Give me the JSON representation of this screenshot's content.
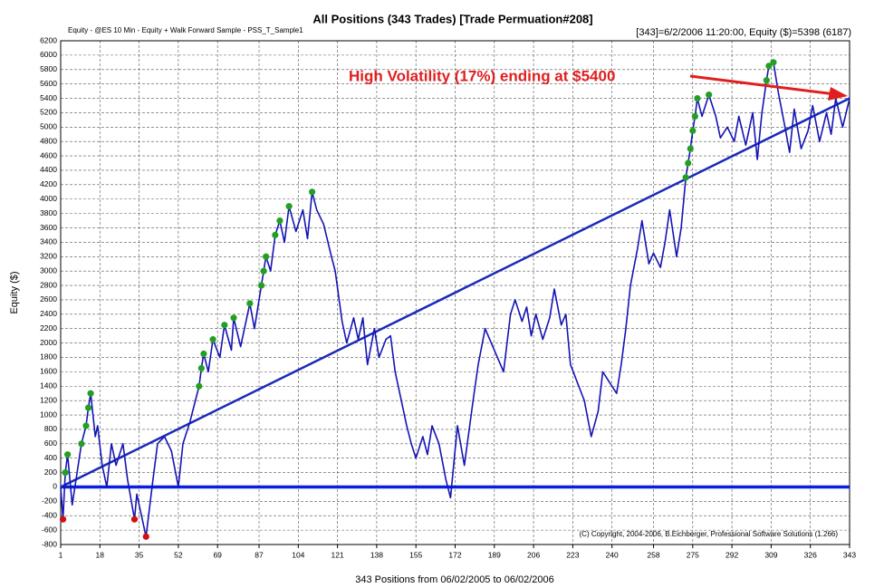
{
  "chart_data": {
    "type": "line",
    "title": "All Positions (343 Trades) [Trade Permuation#208]",
    "subtitle": "Equity - @ES 10 Min - Equity + Walk Forward Sample - PSS_T_Sample1",
    "info": "[343]=6/2/2006 11:20:00,  Equity ($)=5398 (6187)",
    "y_label": "Equity ($)",
    "x_label": "343 Positions from 06/02/2005 to 06/02/2006",
    "annotation": "High Volatility (17%) ending at $5400",
    "copyright": "(C) Copyright, 2004-2006, B.Eichberger, Professional Software Solutions (1.266)",
    "xlim": [
      1,
      343
    ],
    "ylim": [
      -800,
      6200
    ],
    "xticks": [
      1,
      18,
      35,
      52,
      69,
      87,
      104,
      121,
      138,
      155,
      172,
      189,
      206,
      223,
      240,
      258,
      275,
      292,
      309,
      326,
      343
    ],
    "yticks": [
      -800,
      -600,
      -400,
      -200,
      0,
      200,
      400,
      600,
      800,
      1000,
      1200,
      1400,
      1600,
      1800,
      2000,
      2200,
      2400,
      2600,
      2800,
      3000,
      3200,
      3400,
      3600,
      3800,
      4000,
      4200,
      4400,
      4600,
      4800,
      5000,
      5200,
      5400,
      5600,
      5800,
      6000,
      6200
    ],
    "grid": true,
    "zero_line": 0,
    "series": [
      {
        "color": "#1414b4",
        "x": [
          1,
          2,
          3,
          4,
          6,
          10,
          12,
          13,
          14,
          16,
          17,
          19,
          21,
          23,
          25,
          28,
          30,
          33,
          34,
          38,
          41,
          43,
          46,
          49,
          52,
          54,
          57,
          61,
          62,
          63,
          65,
          67,
          70,
          72,
          75,
          76,
          79,
          83,
          85,
          88,
          89,
          90,
          92,
          94,
          96,
          98,
          100,
          103,
          106,
          108,
          110,
          112,
          115,
          118,
          120,
          123,
          125,
          128,
          130,
          132,
          134,
          137,
          139,
          142,
          144,
          146,
          148,
          151,
          153,
          155,
          158,
          160,
          162,
          165,
          168,
          170,
          173,
          176,
          180,
          182,
          185,
          189,
          193,
          196,
          198,
          201,
          203,
          205,
          207,
          210,
          213,
          215,
          218,
          220,
          222,
          225,
          228,
          231,
          234,
          236,
          238,
          242,
          244,
          246,
          248,
          251,
          253,
          256,
          258,
          261,
          263,
          265,
          268,
          270,
          272,
          273,
          274,
          275,
          276,
          277,
          279,
          282,
          285,
          287,
          290,
          293,
          295,
          298,
          301,
          303,
          305,
          307,
          308,
          310,
          312,
          315,
          317,
          319,
          322,
          325,
          327,
          330,
          333,
          335,
          337,
          340,
          343
        ],
        "values": [
          0,
          -450,
          200,
          450,
          -250,
          600,
          850,
          1100,
          1300,
          700,
          850,
          300,
          0,
          600,
          300,
          600,
          100,
          -450,
          -100,
          -690,
          100,
          600,
          700,
          500,
          0,
          600,
          900,
          1400,
          1650,
          1850,
          1600,
          2050,
          1800,
          2250,
          1900,
          2350,
          1950,
          2550,
          2200,
          2800,
          3000,
          3200,
          3000,
          3500,
          3700,
          3400,
          3900,
          3550,
          3850,
          3450,
          4100,
          3850,
          3650,
          3250,
          3000,
          2300,
          2000,
          2350,
          2050,
          2350,
          1700,
          2200,
          1800,
          2050,
          2100,
          1600,
          1300,
          850,
          600,
          400,
          700,
          450,
          850,
          600,
          100,
          -150,
          850,
          300,
          1250,
          1700,
          2200,
          1900,
          1600,
          2400,
          2600,
          2300,
          2500,
          2100,
          2400,
          2050,
          2350,
          2750,
          2250,
          2400,
          1700,
          1450,
          1200,
          700,
          1050,
          1600,
          1500,
          1300,
          1700,
          2200,
          2800,
          3300,
          3700,
          3100,
          3250,
          3050,
          3400,
          3850,
          3200,
          3600,
          4300,
          4500,
          4700,
          4950,
          5150,
          5400,
          5150,
          5450,
          5150,
          4850,
          5000,
          4800,
          5150,
          4750,
          5200,
          4550,
          5200,
          5650,
          5850,
          5900,
          5500,
          5000,
          4650,
          5250,
          4700,
          4950,
          5300,
          4800,
          5200,
          4900,
          5400,
          5000,
          5398
        ]
      }
    ],
    "highs": {
      "color": "#22a022",
      "x": [
        3,
        4,
        10,
        12,
        13,
        14,
        61,
        62,
        63,
        67,
        72,
        76,
        83,
        88,
        89,
        90,
        94,
        96,
        100,
        110,
        272,
        273,
        274,
        275,
        276,
        277,
        282,
        307,
        308,
        310
      ],
      "values": [
        200,
        450,
        600,
        850,
        1100,
        1300,
        1400,
        1650,
        1850,
        2050,
        2250,
        2350,
        2550,
        2800,
        3000,
        3200,
        3500,
        3700,
        3900,
        4100,
        4300,
        4500,
        4700,
        4950,
        5150,
        5400,
        5450,
        5650,
        5850,
        5900
      ]
    },
    "lows": {
      "color": "#d01010",
      "x": [
        2,
        33,
        38
      ],
      "values": [
        -450,
        -450,
        -690
      ]
    },
    "trend": {
      "color": "#1a2ab8",
      "x": [
        1,
        343
      ],
      "values": [
        0,
        5400
      ]
    }
  }
}
